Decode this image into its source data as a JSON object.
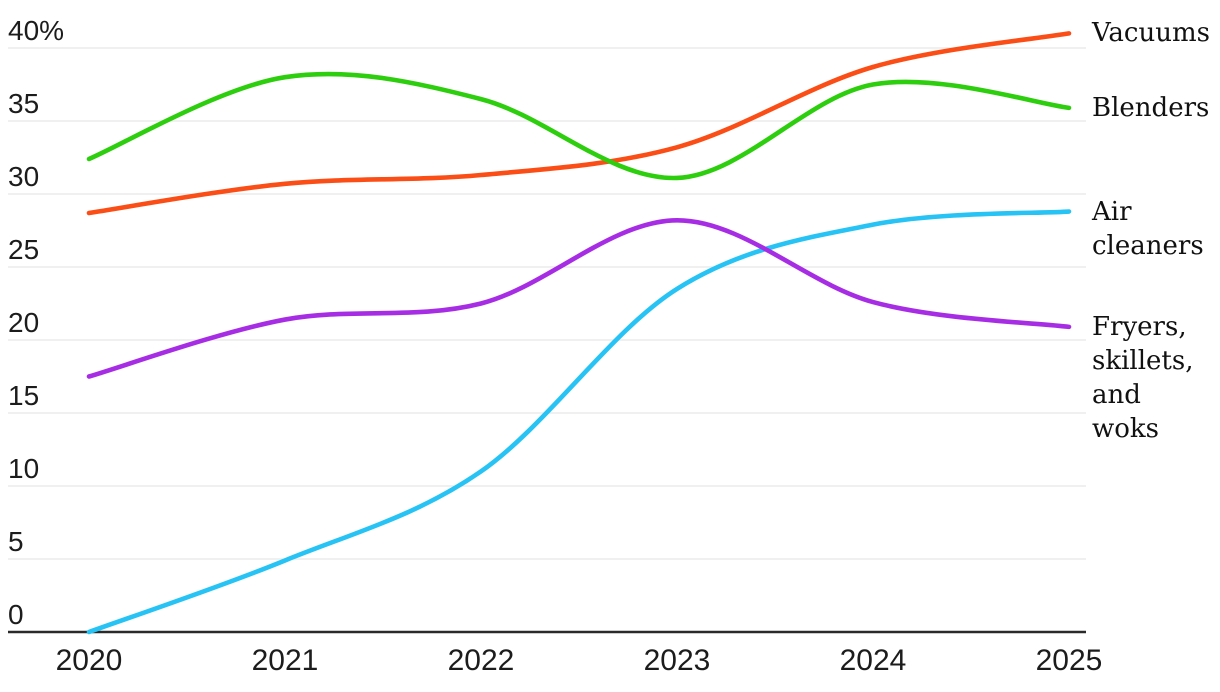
{
  "chart_data": {
    "type": "line",
    "title": "",
    "unit": "%",
    "x": [
      2020,
      2021,
      2022,
      2023,
      2024,
      2025
    ],
    "x_tick_labels": [
      "2020",
      "2021",
      "2022",
      "2023",
      "2024",
      "2025"
    ],
    "y_axis": {
      "min": 0,
      "max": 40,
      "tick_step": 5,
      "ticks": [
        {
          "label": "40%",
          "value": 40
        },
        {
          "label": "35",
          "value": 35
        },
        {
          "label": "30",
          "value": 30
        },
        {
          "label": "25",
          "value": 25
        },
        {
          "label": "20",
          "value": 20
        },
        {
          "label": "15",
          "value": 15
        },
        {
          "label": "10",
          "value": 10
        },
        {
          "label": "5",
          "value": 5
        },
        {
          "label": "0",
          "value": 0
        }
      ]
    },
    "grid": "horizontal",
    "legend_position": "right-of-line-ends",
    "series": [
      {
        "name": "Vacuums",
        "display_label": "Vacuums",
        "color": "#fb4d16",
        "values": [
          28.7,
          30.7,
          31.3,
          33.2,
          38.7,
          41.0
        ]
      },
      {
        "name": "Blenders",
        "display_label": "Blenders",
        "color": "#2dce0d",
        "values": [
          32.4,
          38.0,
          36.5,
          31.1,
          37.5,
          35.9
        ]
      },
      {
        "name": "Air cleaners",
        "display_label": "Air\ncleaners",
        "color": "#27c3f4",
        "values": [
          0,
          4.9,
          11.0,
          23.5,
          27.9,
          28.8
        ]
      },
      {
        "name": "Fryers, skillets, and woks",
        "display_label": "Fryers,\nskillets,\nand\nwoks",
        "color": "#a72de4",
        "values": [
          17.5,
          21.4,
          22.5,
          28.2,
          22.6,
          20.9
        ]
      }
    ]
  },
  "colors": {
    "gridline": "#e8e8e8",
    "axis_line": "#2a2a2a",
    "axis_text": "#1c1c1c",
    "background": "#ffffff"
  }
}
